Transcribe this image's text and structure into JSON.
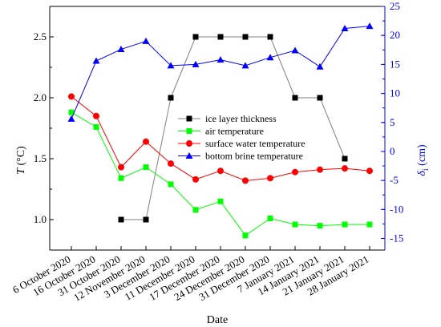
{
  "chart_data": {
    "type": "line",
    "xlabel": "Date",
    "ylabel_left": "T (°C)",
    "ylabel_right": "δi (cm)",
    "categories": [
      "6 October 2020",
      "16 October 2020",
      "31 October 2020",
      "12 November 2020",
      "3 December 2020",
      "11 December 2020",
      "17 December 2020",
      "24 December 2020",
      "31 December 2020",
      "7 January 2021",
      "14 January 2021",
      "21 January 2021",
      "28 January 2021"
    ],
    "y_left": {
      "range": [
        0.75,
        2.75
      ],
      "ticks": [
        "1.0",
        "1.5",
        "2.0",
        "2.5"
      ],
      "tick_values": [
        1.0,
        1.5,
        2.0,
        2.5
      ]
    },
    "y_right": {
      "range": [
        -17,
        25
      ],
      "ticks": [
        "-15",
        "-10",
        "-5",
        "0",
        "5",
        "10",
        "15",
        "20",
        "25"
      ],
      "tick_values": [
        -15,
        -10,
        -5,
        0,
        5,
        10,
        15,
        20,
        25
      ],
      "color": "#0000ff"
    },
    "legend_position": "center-right",
    "grid": false,
    "series": [
      {
        "name": "ice layer thickness",
        "axis": "left",
        "color": "#000000",
        "line_color": "#808080",
        "marker": "square",
        "values": [
          null,
          null,
          1.0,
          1.0,
          2.0,
          2.5,
          2.5,
          2.5,
          2.5,
          2.0,
          2.0,
          1.5,
          null
        ]
      },
      {
        "name": "air temperature",
        "axis": "left",
        "color": "#00ff00",
        "marker": "square",
        "values": [
          1.88,
          1.76,
          1.34,
          1.43,
          1.29,
          1.08,
          1.15,
          0.87,
          1.01,
          0.96,
          0.95,
          0.96,
          0.96
        ]
      },
      {
        "name": "surface water temperature",
        "axis": "left",
        "color": "#ff0000",
        "marker": "circle",
        "values": [
          2.01,
          1.85,
          1.43,
          1.64,
          1.46,
          1.33,
          1.4,
          1.32,
          1.34,
          1.39,
          1.41,
          1.42,
          1.4
        ]
      },
      {
        "name": "bottom brine temperature",
        "axis": "right",
        "color": "#0000ff",
        "marker": "triangle",
        "values": [
          5.6,
          15.6,
          17.6,
          19.0,
          14.8,
          15.0,
          15.8,
          14.8,
          16.2,
          17.4,
          14.6,
          21.2,
          21.6
        ]
      }
    ]
  }
}
